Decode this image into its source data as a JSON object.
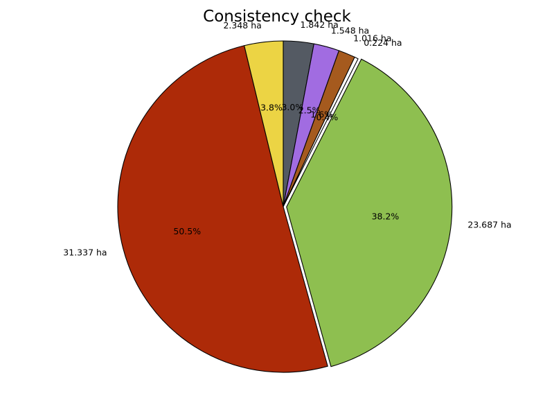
{
  "chart_data": {
    "type": "pie",
    "title": "Consistency check",
    "start_angle_deg": 90,
    "direction": "clockwise",
    "legend": "none",
    "slices": [
      {
        "value": 1.842,
        "label": "1.842 ha",
        "pct": "3.0%",
        "color": "#545a63",
        "explode": 0
      },
      {
        "value": 1.548,
        "label": "1.548 ha",
        "pct": "2.5%",
        "color": "#a16ce1",
        "explode": 0
      },
      {
        "value": 1.016,
        "label": "1.016 ha",
        "pct": "1.6%",
        "color": "#a55a1e",
        "explode": 0
      },
      {
        "value": 0.224,
        "label": "0.224 ha",
        "pct": "0.4%",
        "color": "#ffffff",
        "explode": 0
      },
      {
        "value": 23.687,
        "label": "23.687 ha",
        "pct": "38.2%",
        "color": "#8ebf50",
        "explode": 0.02
      },
      {
        "value": 31.337,
        "label": "31.337 ha",
        "pct": "50.5%",
        "color": "#ad2a08",
        "explode": 0
      },
      {
        "value": 2.348,
        "label": "2.348 ha",
        "pct": "3.8%",
        "color": "#ecd444",
        "explode": 0
      }
    ]
  }
}
